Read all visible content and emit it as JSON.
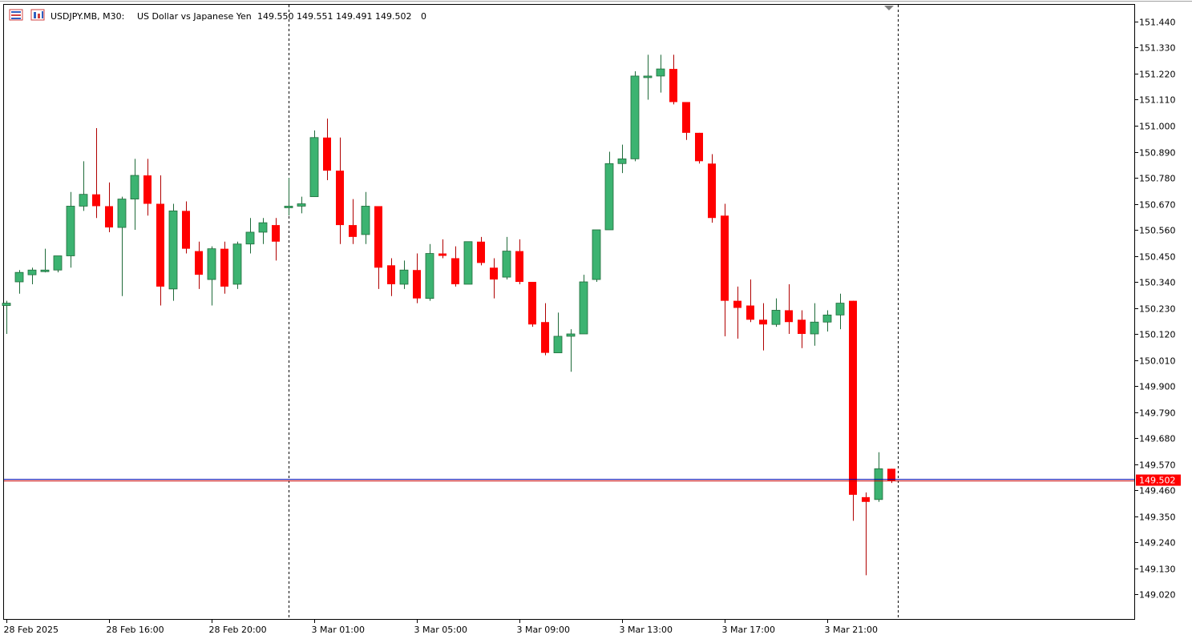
{
  "header": {
    "symbol": "USDJPY.MB, M30:",
    "description": "US Dollar vs Japanese Yen",
    "ohlc": "149.550 149.551 149.491 149.502",
    "extra": "0",
    "icons": [
      "bars-toggle-icon",
      "symbol-chart-icon"
    ]
  },
  "colors": {
    "bull": "#3cb371",
    "bear": "#ff0000",
    "bid_line": "#0000aa",
    "ask_line": "#cc0000",
    "price_tag_bg": "#ff0000",
    "price_tag_text": "#ffffff",
    "separator": "#000000",
    "frame": "#000000"
  },
  "chart_data": {
    "type": "candlestick",
    "timeframe": "M30",
    "ylim": [
      148.93,
      151.5
    ],
    "y_ticks": [
      "151.440",
      "151.330",
      "151.220",
      "151.110",
      "151.000",
      "150.890",
      "150.780",
      "150.670",
      "150.560",
      "150.450",
      "150.340",
      "150.230",
      "150.120",
      "150.010",
      "149.900",
      "149.790",
      "149.680",
      "149.570",
      "149.460",
      "149.350",
      "149.240",
      "149.130",
      "149.020"
    ],
    "x_labels": [
      {
        "label": "28 Feb 2025",
        "bar": 0
      },
      {
        "label": "28 Feb 16:00",
        "bar": 8
      },
      {
        "label": "28 Feb 20:00",
        "bar": 16
      },
      {
        "label": "3 Mar 01:00",
        "bar": 24
      },
      {
        "label": "3 Mar 05:00",
        "bar": 32
      },
      {
        "label": "3 Mar 09:00",
        "bar": 40
      },
      {
        "label": "3 Mar 13:00",
        "bar": 48
      },
      {
        "label": "3 Mar 17:00",
        "bar": 56
      },
      {
        "label": "3 Mar 21:00",
        "bar": 64
      }
    ],
    "day_separators": [
      22,
      69.5
    ],
    "current_price": 149.502,
    "current_price_label": "149.502",
    "candles": [
      {
        "o": 150.24,
        "h": 150.26,
        "l": 150.12,
        "c": 150.25
      },
      {
        "o": 150.34,
        "h": 150.39,
        "l": 150.29,
        "c": 150.38
      },
      {
        "o": 150.37,
        "h": 150.4,
        "l": 150.33,
        "c": 150.39
      },
      {
        "o": 150.39,
        "h": 150.48,
        "l": 150.38,
        "c": 150.39
      },
      {
        "o": 150.39,
        "h": 150.43,
        "l": 150.38,
        "c": 150.45
      },
      {
        "o": 150.45,
        "h": 150.72,
        "l": 150.4,
        "c": 150.66
      },
      {
        "o": 150.66,
        "h": 150.85,
        "l": 150.64,
        "c": 150.71
      },
      {
        "o": 150.71,
        "h": 150.99,
        "l": 150.61,
        "c": 150.66
      },
      {
        "o": 150.66,
        "h": 150.76,
        "l": 150.55,
        "c": 150.57
      },
      {
        "o": 150.57,
        "h": 150.7,
        "l": 150.28,
        "c": 150.69
      },
      {
        "o": 150.69,
        "h": 150.86,
        "l": 150.56,
        "c": 150.79
      },
      {
        "o": 150.79,
        "h": 150.86,
        "l": 150.62,
        "c": 150.67
      },
      {
        "o": 150.67,
        "h": 150.79,
        "l": 150.24,
        "c": 150.32
      },
      {
        "o": 150.31,
        "h": 150.67,
        "l": 150.26,
        "c": 150.64
      },
      {
        "o": 150.64,
        "h": 150.68,
        "l": 150.46,
        "c": 150.48
      },
      {
        "o": 150.47,
        "h": 150.51,
        "l": 150.31,
        "c": 150.37
      },
      {
        "o": 150.35,
        "h": 150.49,
        "l": 150.24,
        "c": 150.48
      },
      {
        "o": 150.48,
        "h": 150.51,
        "l": 150.29,
        "c": 150.32
      },
      {
        "o": 150.33,
        "h": 150.51,
        "l": 150.31,
        "c": 150.5
      },
      {
        "o": 150.5,
        "h": 150.61,
        "l": 150.46,
        "c": 150.55
      },
      {
        "o": 150.55,
        "h": 150.61,
        "l": 150.5,
        "c": 150.59
      },
      {
        "o": 150.58,
        "h": 150.61,
        "l": 150.43,
        "c": 150.51
      },
      {
        "o": 150.66,
        "h": 150.78,
        "l": 150.62,
        "c": 150.66
      },
      {
        "o": 150.66,
        "h": 150.7,
        "l": 150.63,
        "c": 150.67
      },
      {
        "o": 150.7,
        "h": 150.98,
        "l": 150.7,
        "c": 150.95
      },
      {
        "o": 150.95,
        "h": 151.03,
        "l": 150.77,
        "c": 150.81
      },
      {
        "o": 150.81,
        "h": 150.95,
        "l": 150.5,
        "c": 150.58
      },
      {
        "o": 150.58,
        "h": 150.69,
        "l": 150.5,
        "c": 150.53
      },
      {
        "o": 150.54,
        "h": 150.72,
        "l": 150.5,
        "c": 150.66
      },
      {
        "o": 150.66,
        "h": 150.66,
        "l": 150.31,
        "c": 150.4
      },
      {
        "o": 150.41,
        "h": 150.44,
        "l": 150.28,
        "c": 150.33
      },
      {
        "o": 150.33,
        "h": 150.43,
        "l": 150.31,
        "c": 150.39
      },
      {
        "o": 150.39,
        "h": 150.46,
        "l": 150.25,
        "c": 150.27
      },
      {
        "o": 150.27,
        "h": 150.5,
        "l": 150.26,
        "c": 150.46
      },
      {
        "o": 150.46,
        "h": 150.52,
        "l": 150.44,
        "c": 150.45
      },
      {
        "o": 150.44,
        "h": 150.49,
        "l": 150.32,
        "c": 150.33
      },
      {
        "o": 150.33,
        "h": 150.51,
        "l": 150.33,
        "c": 150.51
      },
      {
        "o": 150.51,
        "h": 150.53,
        "l": 150.41,
        "c": 150.42
      },
      {
        "o": 150.4,
        "h": 150.44,
        "l": 150.27,
        "c": 150.35
      },
      {
        "o": 150.36,
        "h": 150.53,
        "l": 150.35,
        "c": 150.47
      },
      {
        "o": 150.47,
        "h": 150.52,
        "l": 150.33,
        "c": 150.34
      },
      {
        "o": 150.34,
        "h": 150.34,
        "l": 150.15,
        "c": 150.16
      },
      {
        "o": 150.17,
        "h": 150.25,
        "l": 150.03,
        "c": 150.04
      },
      {
        "o": 150.04,
        "h": 150.21,
        "l": 150.04,
        "c": 150.11
      },
      {
        "o": 150.11,
        "h": 150.14,
        "l": 149.96,
        "c": 150.12
      },
      {
        "o": 150.12,
        "h": 150.37,
        "l": 150.12,
        "c": 150.34
      },
      {
        "o": 150.35,
        "h": 150.56,
        "l": 150.34,
        "c": 150.56
      },
      {
        "o": 150.56,
        "h": 150.89,
        "l": 150.56,
        "c": 150.84
      },
      {
        "o": 150.84,
        "h": 150.92,
        "l": 150.8,
        "c": 150.86
      },
      {
        "o": 150.86,
        "h": 151.23,
        "l": 150.85,
        "c": 151.21
      },
      {
        "o": 151.21,
        "h": 151.3,
        "l": 151.11,
        "c": 151.21
      },
      {
        "o": 151.21,
        "h": 151.3,
        "l": 151.14,
        "c": 151.24
      },
      {
        "o": 151.24,
        "h": 151.3,
        "l": 151.09,
        "c": 151.1
      },
      {
        "o": 151.1,
        "h": 151.1,
        "l": 150.94,
        "c": 150.97
      },
      {
        "o": 150.97,
        "h": 150.97,
        "l": 150.84,
        "c": 150.85
      },
      {
        "o": 150.84,
        "h": 150.88,
        "l": 150.59,
        "c": 150.61
      },
      {
        "o": 150.62,
        "h": 150.67,
        "l": 150.11,
        "c": 150.26
      },
      {
        "o": 150.26,
        "h": 150.32,
        "l": 150.1,
        "c": 150.23
      },
      {
        "o": 150.24,
        "h": 150.35,
        "l": 150.17,
        "c": 150.18
      },
      {
        "o": 150.18,
        "h": 150.25,
        "l": 150.05,
        "c": 150.16
      },
      {
        "o": 150.16,
        "h": 150.27,
        "l": 150.15,
        "c": 150.22
      },
      {
        "o": 150.22,
        "h": 150.33,
        "l": 150.12,
        "c": 150.17
      },
      {
        "o": 150.18,
        "h": 150.22,
        "l": 150.06,
        "c": 150.12
      },
      {
        "o": 150.12,
        "h": 150.25,
        "l": 150.07,
        "c": 150.17
      },
      {
        "o": 150.17,
        "h": 150.22,
        "l": 150.13,
        "c": 150.2
      },
      {
        "o": 150.2,
        "h": 150.29,
        "l": 150.14,
        "c": 150.25
      },
      {
        "o": 150.26,
        "h": 150.26,
        "l": 149.33,
        "c": 149.44
      },
      {
        "o": 149.43,
        "h": 149.45,
        "l": 149.1,
        "c": 149.41
      },
      {
        "o": 149.42,
        "h": 149.62,
        "l": 149.41,
        "c": 149.55
      },
      {
        "o": 149.55,
        "h": 149.55,
        "l": 149.49,
        "c": 149.5
      }
    ]
  }
}
